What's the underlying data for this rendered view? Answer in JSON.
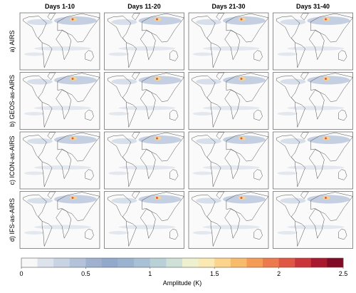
{
  "columns": [
    "Days 1-10",
    "Days 11-20",
    "Days 21-30",
    "Days 31-40"
  ],
  "rows": [
    "a) AIRS",
    "b) GEOS-as-AIRS",
    "c) ICON-as-AIRS",
    "d) IFS-as-AIRS"
  ],
  "colorbar": {
    "lim": [
      0,
      2.5
    ],
    "ticks": [
      0,
      0.5,
      1,
      1.5,
      2,
      2.5
    ],
    "label": "Amplitude (K)",
    "colors": [
      "#f7f7f7",
      "#dde3ec",
      "#c8d3e3",
      "#b3c2d9",
      "#9fb1cf",
      "#93a9cb",
      "#9bb3cf",
      "#a9c1d4",
      "#b9d1d6",
      "#cfe0d6",
      "#eef1cf",
      "#fbe9b4",
      "#fbd58c",
      "#f8bb6a",
      "#f49c56",
      "#ec7a4c",
      "#df5744",
      "#c9353b",
      "#a8182f",
      "#800b24"
    ]
  }
}
